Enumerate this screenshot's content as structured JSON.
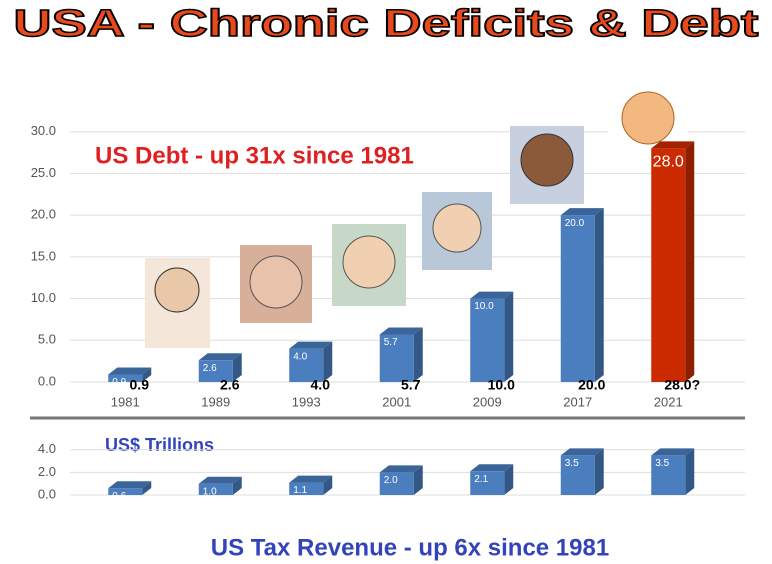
{
  "title": "USA - Chronic Deficits & Debt",
  "chart_data": [
    {
      "type": "bar3d",
      "annotation": "US Debt  -  up 31x since 1981",
      "categories": [
        "1981",
        "1989",
        "1993",
        "2001",
        "2009",
        "2017",
        "2021"
      ],
      "values": [
        0.9,
        2.6,
        4.0,
        5.7,
        10.0,
        20.0,
        28.0
      ],
      "value_labels": [
        "0.9",
        "2.6",
        "4.0",
        "5.7",
        "10.0",
        "20.0",
        "28.0"
      ],
      "bottom_labels": [
        "0.9",
        "2.6",
        "4.0",
        "5.7",
        "10.0",
        "20.0",
        "28.0?"
      ],
      "colors": [
        "#4a7ebf",
        "#4a7ebf",
        "#4a7ebf",
        "#4a7ebf",
        "#4a7ebf",
        "#4a7ebf",
        "#cc2a00"
      ],
      "ylim": [
        0,
        32
      ],
      "yticks": [
        {
          "value": 0,
          "label": "0.0"
        },
        {
          "value": 5,
          "label": "5.0"
        },
        {
          "value": 10,
          "label": "10.0"
        },
        {
          "value": 15,
          "label": "15.0"
        },
        {
          "value": 20,
          "label": "20.0"
        },
        {
          "value": 25,
          "label": "25.0"
        },
        {
          "value": 30,
          "label": "30.0"
        }
      ],
      "grid": true
    },
    {
      "type": "bar3d",
      "annotation": "US$ Trillions",
      "title": "US Tax Revenue  - up 6x since 1981",
      "values": [
        0.6,
        1.0,
        1.1,
        2.0,
        2.1,
        3.5,
        3.5
      ],
      "value_labels": [
        "0.6",
        "1.0",
        "1.1",
        "2.0",
        "2.1",
        "3.5",
        "3.5"
      ],
      "colors": [
        "#4a7ebf",
        "#4a7ebf",
        "#4a7ebf",
        "#4a7ebf",
        "#4a7ebf",
        "#4a7ebf",
        "#4a7ebf"
      ],
      "ylim": [
        0,
        4.6
      ],
      "yticks": [
        {
          "value": 0,
          "label": "0.0"
        },
        {
          "value": 2,
          "label": "2.0"
        },
        {
          "value": 4,
          "label": "4.0"
        }
      ],
      "grid": true
    }
  ]
}
